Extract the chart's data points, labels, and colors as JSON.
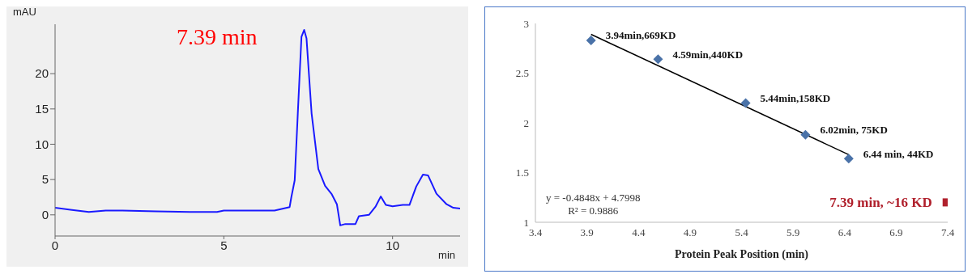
{
  "chart_data": [
    {
      "type": "line",
      "xlabel": "min",
      "ylabel": "mAU",
      "annotations": [
        "7.39 min"
      ],
      "x": [
        0,
        0.5,
        1,
        1.5,
        2,
        3,
        4,
        4.8,
        5,
        5.5,
        6,
        6.5,
        6.95,
        7.0,
        7.1,
        7.2,
        7.3,
        7.38,
        7.45,
        7.6,
        7.8,
        8.0,
        8.2,
        8.35,
        8.45,
        8.6,
        8.9,
        9.0,
        9.3,
        9.5,
        9.65,
        9.8,
        10,
        10.3,
        10.5,
        10.7,
        10.9,
        11.05,
        11.3,
        11.6,
        11.8,
        12
      ],
      "series": [
        {
          "color": "#1a1aff",
          "values": [
            1.0,
            0.7,
            0.4,
            0.6,
            0.6,
            0.5,
            0.4,
            0.4,
            0.6,
            0.6,
            0.6,
            0.6,
            1.1,
            2.5,
            4.9,
            15.2,
            25.2,
            26.2,
            25,
            14.4,
            6.5,
            4.1,
            2.9,
            1.5,
            -1.5,
            -1.3,
            -1.3,
            -0.2,
            0,
            1.2,
            2.6,
            1.4,
            1.2,
            1.4,
            1.4,
            4,
            5.7,
            5.6,
            3,
            1.5,
            1,
            0.9
          ]
        }
      ],
      "xlim": [
        0,
        12
      ],
      "xticks": [
        0,
        5,
        10
      ],
      "ylim": [
        -3,
        27
      ],
      "yticks": [
        0,
        5,
        10,
        15,
        20
      ],
      "grid": false,
      "legend": false,
      "marker": "none",
      "line_style": "solid"
    },
    {
      "type": "scatter",
      "xlabel": "Protein Peak Position (min)",
      "annotations": [
        "y = -0.4848x + 4.7998",
        "R² = 0.9886"
      ],
      "series": [
        {
          "type": "scatter",
          "color": "#4a72a8",
          "marker": "diamond",
          "x": [
            3.94,
            4.59,
            5.44,
            6.02,
            6.44
          ],
          "values": [
            2.83,
            2.64,
            2.2,
            1.88,
            1.64
          ],
          "value_labels": [
            "3.94min,669KD",
            "4.59min,440KD",
            "5.44min,158KD",
            "6.02min, 75KD",
            "6.44 min, 44KD"
          ]
        },
        {
          "type": "scatter",
          "color": "#b0202c",
          "marker": "square",
          "x": [
            7.39
          ],
          "values": [
            1.2
          ],
          "value_labels": [
            "7.39 min, ~16 KD"
          ]
        },
        {
          "type": "line",
          "color": "#000000",
          "marker": "none",
          "x": [
            3.94,
            6.44
          ],
          "values": [
            2.89,
            1.68
          ]
        }
      ],
      "xlim": [
        3.4,
        7.4
      ],
      "xticks": [
        3.4,
        3.9,
        4.4,
        4.9,
        5.4,
        5.9,
        6.4,
        6.9,
        7.4
      ],
      "ylim": [
        1,
        3
      ],
      "yticks": [
        1,
        1.5,
        2,
        2.5,
        3
      ],
      "grid": false,
      "legend": false
    }
  ]
}
